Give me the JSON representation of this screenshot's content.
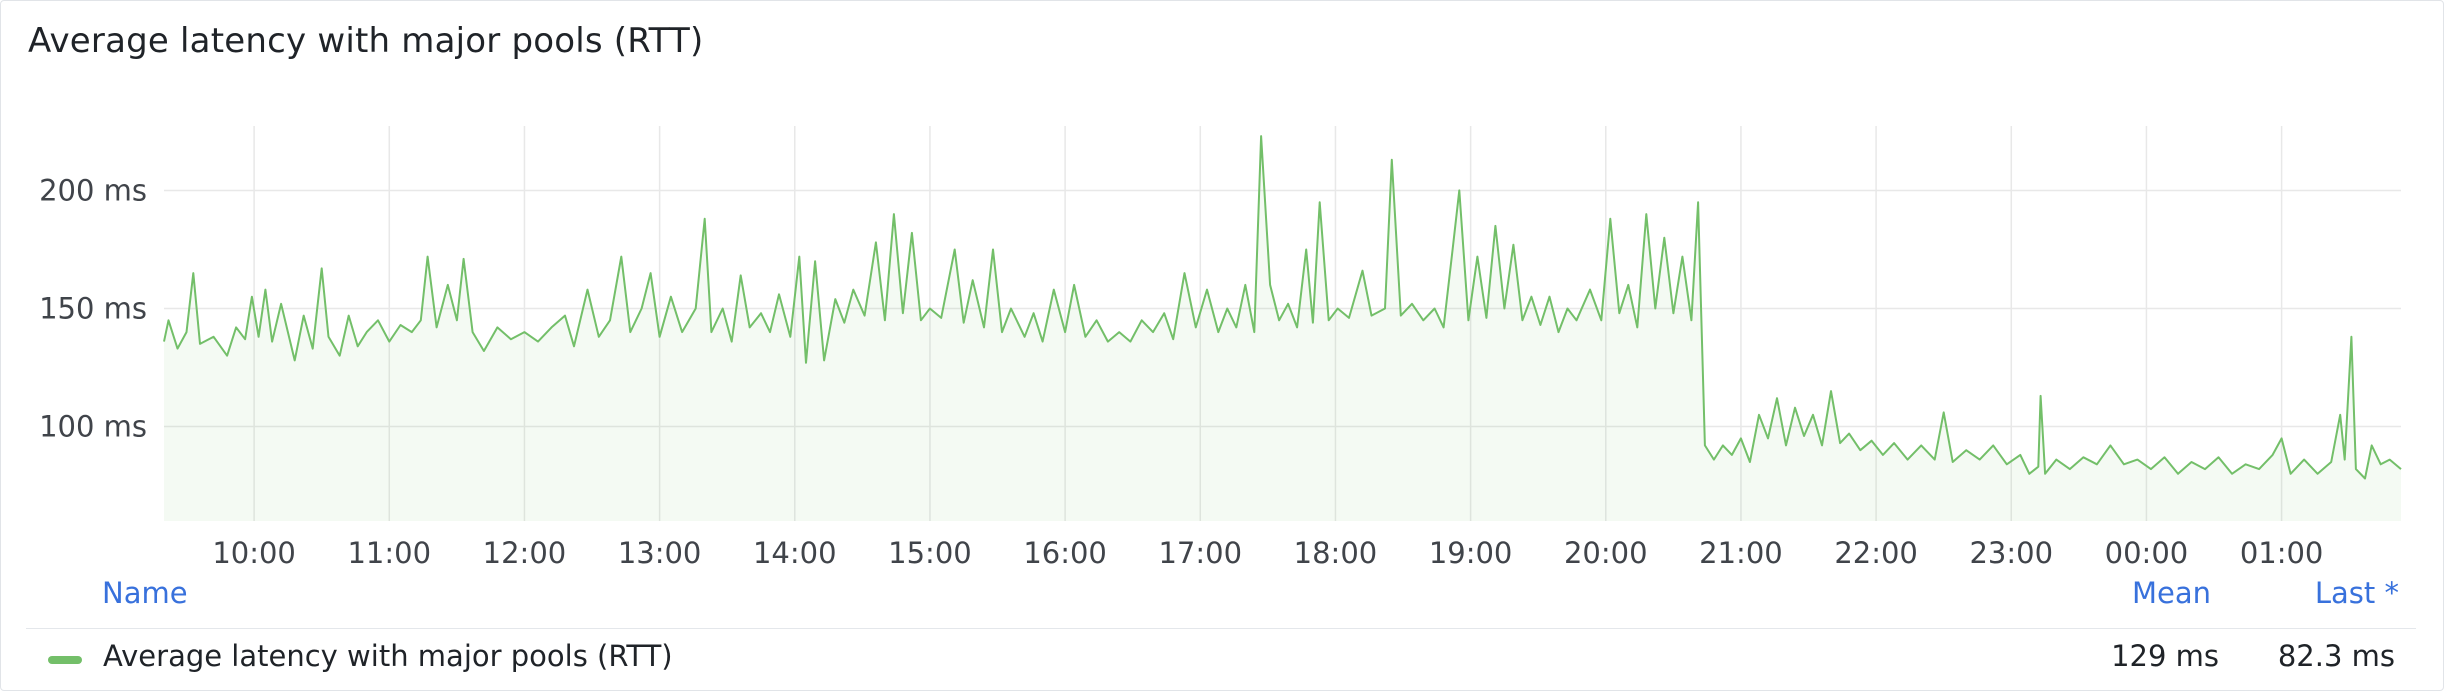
{
  "panel": {
    "title": "Average latency with major pools (RTT)"
  },
  "colors": {
    "series": "#73bf69",
    "grid": "#e8e8e8",
    "axis_text": "#40444a",
    "legend_header": "#3871dc"
  },
  "chart_data": {
    "type": "line",
    "title": "Average latency with major pools (RTT)",
    "x_range": [
      "09:20",
      "01:53"
    ],
    "x_ticks": [
      "10:00",
      "11:00",
      "12:00",
      "13:00",
      "14:00",
      "15:00",
      "16:00",
      "17:00",
      "18:00",
      "19:00",
      "20:00",
      "21:00",
      "22:00",
      "23:00",
      "00:00",
      "01:00"
    ],
    "y_ticks": [
      "100 ms",
      "150 ms",
      "200 ms"
    ],
    "ylim": [
      60,
      240
    ],
    "y_unit": "ms",
    "grid": true,
    "fill": true,
    "legend": {
      "placement": "bottom",
      "columns": [
        "Name",
        "Mean",
        "Last *"
      ]
    },
    "series": [
      {
        "name": "Average latency with major pools (RTT)",
        "mean": "129 ms",
        "last": "82.3 ms",
        "points": [
          [
            "09:20",
            136
          ],
          [
            "09:22",
            145
          ],
          [
            "09:26",
            133
          ],
          [
            "09:30",
            140
          ],
          [
            "09:33",
            165
          ],
          [
            "09:36",
            135
          ],
          [
            "09:42",
            138
          ],
          [
            "09:48",
            130
          ],
          [
            "09:52",
            142
          ],
          [
            "09:56",
            137
          ],
          [
            "09:59",
            155
          ],
          [
            "10:02",
            138
          ],
          [
            "10:05",
            158
          ],
          [
            "10:08",
            136
          ],
          [
            "10:12",
            152
          ],
          [
            "10:15",
            140
          ],
          [
            "10:18",
            128
          ],
          [
            "10:22",
            147
          ],
          [
            "10:26",
            133
          ],
          [
            "10:30",
            167
          ],
          [
            "10:33",
            138
          ],
          [
            "10:38",
            130
          ],
          [
            "10:42",
            147
          ],
          [
            "10:46",
            134
          ],
          [
            "10:50",
            140
          ],
          [
            "10:55",
            145
          ],
          [
            "11:00",
            136
          ],
          [
            "11:05",
            143
          ],
          [
            "11:10",
            140
          ],
          [
            "11:14",
            145
          ],
          [
            "11:17",
            172
          ],
          [
            "11:21",
            142
          ],
          [
            "11:26",
            160
          ],
          [
            "11:30",
            145
          ],
          [
            "11:33",
            171
          ],
          [
            "11:37",
            140
          ],
          [
            "11:42",
            132
          ],
          [
            "11:48",
            142
          ],
          [
            "11:54",
            137
          ],
          [
            "12:00",
            140
          ],
          [
            "12:06",
            136
          ],
          [
            "12:12",
            142
          ],
          [
            "12:18",
            147
          ],
          [
            "12:22",
            134
          ],
          [
            "12:28",
            158
          ],
          [
            "12:33",
            138
          ],
          [
            "12:38",
            145
          ],
          [
            "12:43",
            172
          ],
          [
            "12:47",
            140
          ],
          [
            "12:52",
            150
          ],
          [
            "12:56",
            165
          ],
          [
            "13:00",
            138
          ],
          [
            "13:05",
            155
          ],
          [
            "13:10",
            140
          ],
          [
            "13:16",
            150
          ],
          [
            "13:20",
            188
          ],
          [
            "13:23",
            140
          ],
          [
            "13:28",
            150
          ],
          [
            "13:32",
            136
          ],
          [
            "13:36",
            164
          ],
          [
            "13:40",
            142
          ],
          [
            "13:45",
            148
          ],
          [
            "13:49",
            140
          ],
          [
            "13:53",
            156
          ],
          [
            "13:58",
            138
          ],
          [
            "14:02",
            172
          ],
          [
            "14:05",
            127
          ],
          [
            "14:09",
            170
          ],
          [
            "14:13",
            128
          ],
          [
            "14:18",
            154
          ],
          [
            "14:22",
            144
          ],
          [
            "14:26",
            158
          ],
          [
            "14:31",
            147
          ],
          [
            "14:36",
            178
          ],
          [
            "14:40",
            145
          ],
          [
            "14:44",
            190
          ],
          [
            "14:48",
            148
          ],
          [
            "14:52",
            182
          ],
          [
            "14:56",
            145
          ],
          [
            "15:00",
            150
          ],
          [
            "15:05",
            146
          ],
          [
            "15:11",
            175
          ],
          [
            "15:15",
            144
          ],
          [
            "15:19",
            162
          ],
          [
            "15:24",
            142
          ],
          [
            "15:28",
            175
          ],
          [
            "15:32",
            140
          ],
          [
            "15:36",
            150
          ],
          [
            "15:42",
            138
          ],
          [
            "15:46",
            148
          ],
          [
            "15:50",
            136
          ],
          [
            "15:55",
            158
          ],
          [
            "16:00",
            140
          ],
          [
            "16:04",
            160
          ],
          [
            "16:09",
            138
          ],
          [
            "16:14",
            145
          ],
          [
            "16:19",
            136
          ],
          [
            "16:24",
            140
          ],
          [
            "16:29",
            136
          ],
          [
            "16:34",
            145
          ],
          [
            "16:39",
            140
          ],
          [
            "16:44",
            148
          ],
          [
            "16:48",
            137
          ],
          [
            "16:53",
            165
          ],
          [
            "16:58",
            142
          ],
          [
            "17:03",
            158
          ],
          [
            "17:08",
            140
          ],
          [
            "17:12",
            150
          ],
          [
            "17:16",
            142
          ],
          [
            "17:20",
            160
          ],
          [
            "17:24",
            140
          ],
          [
            "17:27",
            223
          ],
          [
            "17:31",
            160
          ],
          [
            "17:35",
            145
          ],
          [
            "17:39",
            152
          ],
          [
            "17:43",
            142
          ],
          [
            "17:47",
            175
          ],
          [
            "17:50",
            144
          ],
          [
            "17:53",
            195
          ],
          [
            "17:57",
            145
          ],
          [
            "18:01",
            150
          ],
          [
            "18:06",
            146
          ],
          [
            "18:12",
            166
          ],
          [
            "18:16",
            147
          ],
          [
            "18:22",
            150
          ],
          [
            "18:25",
            213
          ],
          [
            "18:29",
            147
          ],
          [
            "18:34",
            152
          ],
          [
            "18:39",
            145
          ],
          [
            "18:44",
            150
          ],
          [
            "18:48",
            142
          ],
          [
            "18:52",
            175
          ],
          [
            "18:55",
            200
          ],
          [
            "18:59",
            145
          ],
          [
            "19:03",
            172
          ],
          [
            "19:07",
            146
          ],
          [
            "19:11",
            185
          ],
          [
            "19:15",
            150
          ],
          [
            "19:19",
            177
          ],
          [
            "19:23",
            145
          ],
          [
            "19:27",
            155
          ],
          [
            "19:31",
            143
          ],
          [
            "19:35",
            155
          ],
          [
            "19:39",
            140
          ],
          [
            "19:43",
            150
          ],
          [
            "19:47",
            145
          ],
          [
            "19:53",
            158
          ],
          [
            "19:58",
            145
          ],
          [
            "20:02",
            188
          ],
          [
            "20:06",
            148
          ],
          [
            "20:10",
            160
          ],
          [
            "20:14",
            142
          ],
          [
            "20:18",
            190
          ],
          [
            "20:22",
            150
          ],
          [
            "20:26",
            180
          ],
          [
            "20:30",
            148
          ],
          [
            "20:34",
            172
          ],
          [
            "20:38",
            145
          ],
          [
            "20:41",
            195
          ],
          [
            "20:44",
            92
          ],
          [
            "20:48",
            86
          ],
          [
            "20:52",
            92
          ],
          [
            "20:56",
            88
          ],
          [
            "21:00",
            95
          ],
          [
            "21:04",
            85
          ],
          [
            "21:08",
            105
          ],
          [
            "21:12",
            95
          ],
          [
            "21:16",
            112
          ],
          [
            "21:20",
            92
          ],
          [
            "21:24",
            108
          ],
          [
            "21:28",
            96
          ],
          [
            "21:32",
            105
          ],
          [
            "21:36",
            92
          ],
          [
            "21:40",
            115
          ],
          [
            "21:44",
            93
          ],
          [
            "21:48",
            97
          ],
          [
            "21:53",
            90
          ],
          [
            "21:58",
            94
          ],
          [
            "22:03",
            88
          ],
          [
            "22:08",
            93
          ],
          [
            "22:14",
            86
          ],
          [
            "22:20",
            92
          ],
          [
            "22:26",
            86
          ],
          [
            "22:30",
            106
          ],
          [
            "22:34",
            85
          ],
          [
            "22:40",
            90
          ],
          [
            "22:46",
            86
          ],
          [
            "22:52",
            92
          ],
          [
            "22:58",
            84
          ],
          [
            "23:04",
            88
          ],
          [
            "23:08",
            80
          ],
          [
            "23:12",
            83
          ],
          [
            "23:13",
            113
          ],
          [
            "23:15",
            80
          ],
          [
            "23:20",
            86
          ],
          [
            "23:26",
            82
          ],
          [
            "23:32",
            87
          ],
          [
            "23:38",
            84
          ],
          [
            "23:44",
            92
          ],
          [
            "23:50",
            84
          ],
          [
            "23:56",
            86
          ],
          [
            "00:02",
            82
          ],
          [
            "00:08",
            87
          ],
          [
            "00:14",
            80
          ],
          [
            "00:20",
            85
          ],
          [
            "00:26",
            82
          ],
          [
            "00:32",
            87
          ],
          [
            "00:38",
            80
          ],
          [
            "00:44",
            84
          ],
          [
            "00:50",
            82
          ],
          [
            "00:56",
            88
          ],
          [
            "01:00",
            95
          ],
          [
            "01:04",
            80
          ],
          [
            "01:10",
            86
          ],
          [
            "01:16",
            80
          ],
          [
            "01:22",
            85
          ],
          [
            "01:26",
            105
          ],
          [
            "01:28",
            86
          ],
          [
            "01:31",
            138
          ],
          [
            "01:33",
            82
          ],
          [
            "01:37",
            78
          ],
          [
            "01:40",
            92
          ],
          [
            "01:44",
            84
          ],
          [
            "01:48",
            86
          ],
          [
            "01:53",
            82
          ]
        ]
      }
    ]
  },
  "legend": {
    "headers": {
      "name": "Name",
      "mean": "Mean",
      "last": "Last *"
    },
    "rows": [
      {
        "name": "Average latency with major pools (RTT)",
        "mean": "129 ms",
        "last": "82.3 ms"
      }
    ]
  }
}
